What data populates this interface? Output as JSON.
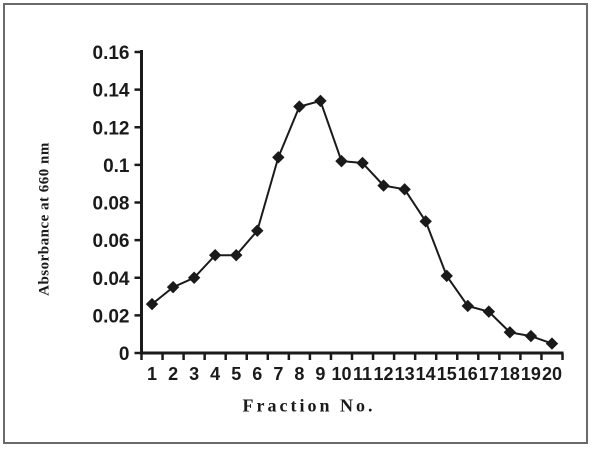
{
  "figure": {
    "frame_color": "#6a6a6a",
    "background": "#ffffff"
  },
  "chart_data": {
    "type": "line",
    "title": "",
    "xlabel": "Fraction No.",
    "ylabel": "Absorbance at 660 nm",
    "x": [
      1,
      2,
      3,
      4,
      5,
      6,
      7,
      8,
      9,
      10,
      11,
      12,
      13,
      14,
      15,
      16,
      17,
      18,
      19,
      20
    ],
    "values": [
      0.026,
      0.035,
      0.04,
      0.052,
      0.052,
      0.065,
      0.104,
      0.131,
      0.134,
      0.102,
      0.101,
      0.089,
      0.087,
      0.07,
      0.041,
      0.025,
      0.022,
      0.011,
      0.009,
      0.005
    ],
    "xtick_labels": [
      "1",
      "2",
      "3",
      "4",
      "5",
      "6",
      "7",
      "8",
      "9",
      "10",
      "11",
      "12",
      "13",
      "14",
      "15",
      "16",
      "17",
      "18",
      "19",
      "20"
    ],
    "ytick_values": [
      0,
      0.02,
      0.04,
      0.06,
      0.08,
      0.1,
      0.12,
      0.14,
      0.16
    ],
    "ytick_labels": [
      "0",
      "0.02",
      "0.04",
      "0.06",
      "0.08",
      "0.1",
      "0.12",
      "0.14",
      "0.16"
    ],
    "ylim": [
      0,
      0.16
    ],
    "xlim_categories": 20,
    "grid": false,
    "legend": null,
    "marker": "diamond",
    "line_color": "#1a1a1a",
    "marker_color": "#1a1a1a",
    "axis_color": "#1a1a1a"
  }
}
